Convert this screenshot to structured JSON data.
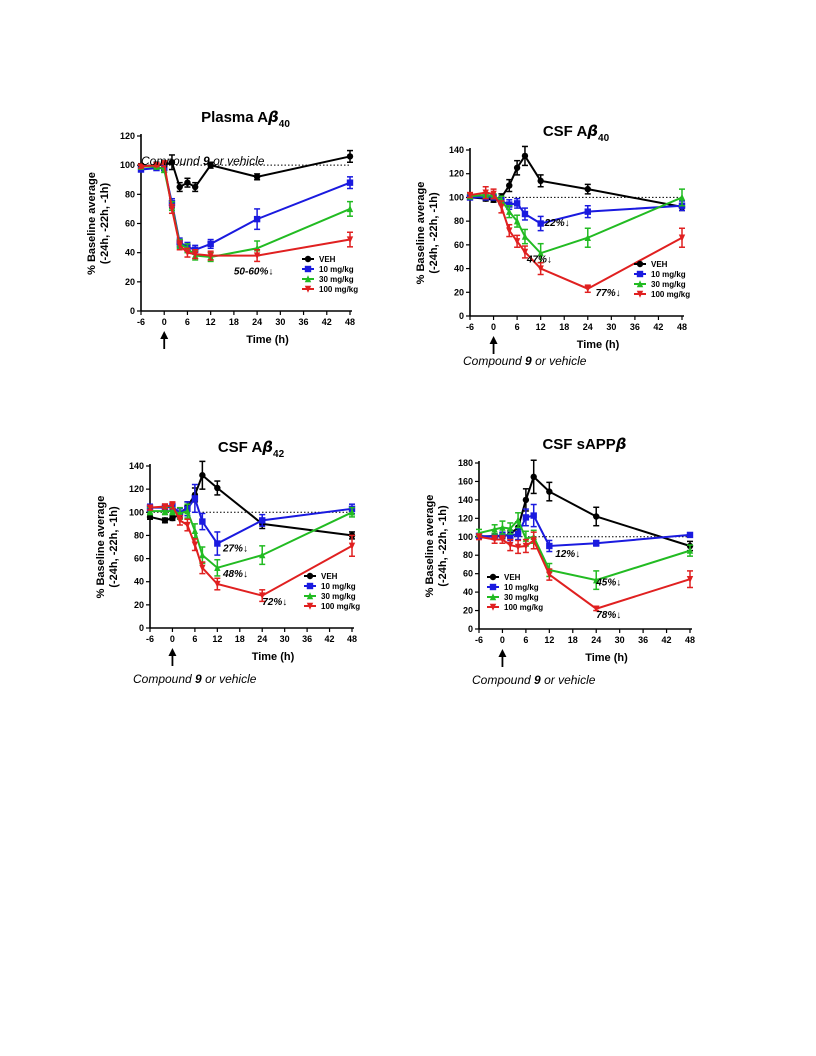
{
  "colors": {
    "VEH": "#000000",
    "10 mg/kg": "#1a1adf",
    "30 mg/kg": "#22bb22",
    "100 mg/kg": "#e02020"
  },
  "chart_data": [
    {
      "type": "line",
      "title_prefix": "Plasma A",
      "title_greek": "β",
      "title_sub": "40",
      "xlabel": "Time (h)",
      "ylabel_line1": "% Baseline average",
      "ylabel_line2": "(-24h, -22h, -1h)",
      "xlim": [
        -6,
        48
      ],
      "ylim": [
        0,
        120
      ],
      "xticks": [
        -6,
        0,
        6,
        12,
        18,
        24,
        30,
        36,
        42,
        48
      ],
      "yticks": [
        0,
        20,
        40,
        60,
        80,
        100,
        120
      ],
      "baseline": 100,
      "caption_prefix": "Compound ",
      "caption_bold": "9",
      "caption_suffix": " or vehicle",
      "legend_placement": "lower-right",
      "annotations": [
        {
          "text": "50-60%↓",
          "x": 18,
          "y": 25
        }
      ],
      "series": [
        {
          "name": "VEH",
          "x": [
            -6,
            -2,
            0,
            2,
            4,
            6,
            8,
            12,
            24,
            48
          ],
          "y": [
            99,
            100,
            100,
            102,
            85,
            88,
            85,
            100,
            92,
            106
          ],
          "err": [
            2,
            2,
            2,
            5,
            3,
            3,
            3,
            2,
            2,
            4
          ]
        },
        {
          "name": "10 mg/kg",
          "x": [
            -6,
            -2,
            0,
            2,
            4,
            6,
            8,
            12,
            24,
            48
          ],
          "y": [
            97,
            98,
            98,
            74,
            47,
            44,
            42,
            46,
            63,
            88
          ],
          "err": [
            1,
            1,
            1,
            3,
            3,
            3,
            3,
            3,
            7,
            4
          ]
        },
        {
          "name": "30 mg/kg",
          "x": [
            -6,
            -2,
            0,
            2,
            4,
            6,
            8,
            12,
            24,
            48
          ],
          "y": [
            99,
            99,
            97,
            72,
            46,
            43,
            38,
            37,
            43,
            70
          ],
          "err": [
            1,
            1,
            2,
            3,
            3,
            3,
            3,
            3,
            5,
            5
          ]
        },
        {
          "name": "100 mg/kg",
          "x": [
            -6,
            -2,
            0,
            2,
            4,
            6,
            8,
            12,
            24,
            48
          ],
          "y": [
            99,
            100,
            101,
            70,
            45,
            40,
            39,
            38,
            38,
            49
          ],
          "err": [
            1,
            1,
            2,
            3,
            3,
            3,
            3,
            3,
            4,
            5
          ]
        }
      ]
    },
    {
      "type": "line",
      "title_prefix": "CSF A",
      "title_greek": "β",
      "title_sub": "40",
      "xlabel": "Time (h)",
      "ylabel_line1": "% Baseline average",
      "ylabel_line2": "(-24h, -22h, -1h)",
      "xlim": [
        -6,
        48
      ],
      "ylim": [
        0,
        140
      ],
      "xticks": [
        -6,
        0,
        6,
        12,
        18,
        24,
        30,
        36,
        42,
        48
      ],
      "yticks": [
        0,
        20,
        40,
        60,
        80,
        100,
        120,
        140
      ],
      "baseline": 100,
      "caption_prefix": "Compound ",
      "caption_bold": "9",
      "caption_suffix": " or vehicle",
      "legend_placement": "lower-right",
      "annotations": [
        {
          "text": "22%↓",
          "x": 13,
          "y": 76
        },
        {
          "text": "47%↓",
          "x": 8.5,
          "y": 45
        },
        {
          "text": "77%↓",
          "x": 26,
          "y": 17
        }
      ],
      "series": [
        {
          "name": "VEH",
          "x": [
            -6,
            -2,
            0,
            2,
            4,
            6,
            8,
            12,
            24,
            48
          ],
          "y": [
            100,
            99,
            98,
            100,
            110,
            125,
            135,
            114,
            107,
            92
          ],
          "err": [
            2,
            2,
            2,
            3,
            5,
            6,
            8,
            5,
            4,
            3
          ]
        },
        {
          "name": "10 mg/kg",
          "x": [
            -6,
            -2,
            0,
            2,
            4,
            6,
            8,
            12,
            24,
            48
          ],
          "y": [
            100,
            100,
            100,
            97,
            94,
            95,
            86,
            78,
            88,
            93
          ],
          "err": [
            2,
            2,
            2,
            3,
            4,
            4,
            5,
            6,
            5,
            4
          ]
        },
        {
          "name": "30 mg/kg",
          "x": [
            -6,
            -2,
            0,
            2,
            4,
            6,
            8,
            12,
            24,
            48
          ],
          "y": [
            101,
            102,
            101,
            98,
            88,
            80,
            67,
            53,
            66,
            100
          ],
          "err": [
            2,
            2,
            2,
            3,
            5,
            5,
            6,
            8,
            8,
            7
          ]
        },
        {
          "name": "100 mg/kg",
          "x": [
            -6,
            -2,
            0,
            2,
            4,
            6,
            8,
            12,
            24,
            48
          ],
          "y": [
            102,
            104,
            103,
            92,
            72,
            63,
            54,
            40,
            23,
            66
          ],
          "err": [
            2,
            5,
            4,
            5,
            5,
            5,
            5,
            5,
            3,
            8
          ]
        }
      ]
    },
    {
      "type": "line",
      "title_prefix": "CSF A",
      "title_greek": "β",
      "title_sub": "42",
      "xlabel": "Time (h)",
      "ylabel_line1": "% Baseline average",
      "ylabel_line2": "(-24h, -22h, -1h)",
      "xlim": [
        -6,
        48
      ],
      "ylim": [
        0,
        140
      ],
      "xticks": [
        -6,
        0,
        6,
        12,
        18,
        24,
        30,
        36,
        42,
        48
      ],
      "yticks": [
        0,
        20,
        40,
        60,
        80,
        100,
        120,
        140
      ],
      "baseline": 100,
      "caption_prefix": "Compound ",
      "caption_bold": "9",
      "caption_suffix": " or vehicle",
      "legend_placement": "lower-right",
      "annotations": [
        {
          "text": "27%↓",
          "x": 13.5,
          "y": 66
        },
        {
          "text": "48%↓",
          "x": 13.5,
          "y": 44
        },
        {
          "text": "72%↓",
          "x": 24,
          "y": 20
        }
      ],
      "series": [
        {
          "name": "VEH",
          "x": [
            -6,
            -2,
            0,
            2,
            4,
            6,
            8,
            12,
            24,
            48
          ],
          "y": [
            96,
            93,
            95,
            98,
            105,
            115,
            132,
            121,
            90,
            80
          ],
          "err": [
            2,
            2,
            2,
            3,
            4,
            6,
            12,
            6,
            4,
            3
          ]
        },
        {
          "name": "10 mg/kg",
          "x": [
            -6,
            -2,
            0,
            2,
            4,
            6,
            8,
            12,
            24,
            48
          ],
          "y": [
            104,
            104,
            105,
            99,
            103,
            112,
            92,
            73,
            93,
            103
          ],
          "err": [
            3,
            3,
            3,
            4,
            6,
            12,
            7,
            10,
            5,
            4
          ]
        },
        {
          "name": "30 mg/kg",
          "x": [
            -6,
            -2,
            0,
            2,
            4,
            6,
            8,
            12,
            24,
            48
          ],
          "y": [
            101,
            101,
            101,
            99,
            101,
            84,
            63,
            52,
            63,
            100
          ],
          "err": [
            3,
            3,
            3,
            5,
            6,
            6,
            7,
            7,
            8,
            4
          ]
        },
        {
          "name": "100 mg/kg",
          "x": [
            -6,
            -2,
            0,
            2,
            4,
            6,
            8,
            12,
            24,
            48
          ],
          "y": [
            104,
            105,
            106,
            93,
            89,
            72,
            52,
            38,
            28,
            71
          ],
          "err": [
            2,
            2,
            3,
            4,
            5,
            5,
            5,
            5,
            5,
            9
          ]
        }
      ]
    },
    {
      "type": "line",
      "title_prefix": "CSF sAPP",
      "title_greek": "β",
      "title_sub": "",
      "xlabel": "Time (h)",
      "ylabel_line1": "% Baseline average",
      "ylabel_line2": "(-24h, -22h, -1h)",
      "xlim": [
        -6,
        48
      ],
      "ylim": [
        0,
        180
      ],
      "xticks": [
        -6,
        0,
        6,
        12,
        18,
        24,
        30,
        36,
        42,
        48
      ],
      "yticks": [
        0,
        20,
        40,
        60,
        80,
        100,
        120,
        140,
        160,
        180
      ],
      "baseline": 100,
      "caption_prefix": "Compound ",
      "caption_bold": "9",
      "caption_suffix": " or vehicle",
      "legend_placement": "lower-left",
      "annotations": [
        {
          "text": "12%↓",
          "x": 13.5,
          "y": 78
        },
        {
          "text": "45%↓",
          "x": 24,
          "y": 47
        },
        {
          "text": "78%↓",
          "x": 24,
          "y": 12
        }
      ],
      "series": [
        {
          "name": "VEH",
          "x": [
            -6,
            -2,
            0,
            2,
            4,
            6,
            8,
            12,
            24,
            48
          ],
          "y": [
            100,
            101,
            100,
            103,
            110,
            140,
            165,
            149,
            122,
            90
          ],
          "err": [
            2,
            2,
            2,
            4,
            6,
            12,
            18,
            10,
            10,
            5
          ]
        },
        {
          "name": "10 mg/kg",
          "x": [
            -6,
            -2,
            0,
            2,
            4,
            6,
            8,
            12,
            24,
            48
          ],
          "y": [
            101,
            100,
            102,
            101,
            103,
            121,
            123,
            90,
            93,
            102
          ],
          "err": [
            2,
            3,
            3,
            5,
            6,
            9,
            12,
            6,
            3,
            2
          ]
        },
        {
          "name": "30 mg/kg",
          "x": [
            -6,
            -2,
            0,
            2,
            4,
            6,
            8,
            12,
            24,
            48
          ],
          "y": [
            104,
            108,
            110,
            109,
            118,
            98,
            100,
            64,
            53,
            85
          ],
          "err": [
            4,
            5,
            7,
            6,
            8,
            8,
            7,
            7,
            10,
            6
          ]
        },
        {
          "name": "100 mg/kg",
          "x": [
            -6,
            -2,
            0,
            2,
            4,
            6,
            8,
            12,
            24,
            48
          ],
          "y": [
            100,
            97,
            97,
            91,
            89,
            90,
            96,
            59,
            22,
            54
          ],
          "err": [
            3,
            4,
            4,
            6,
            7,
            7,
            9,
            6,
            2,
            9
          ]
        }
      ]
    }
  ]
}
